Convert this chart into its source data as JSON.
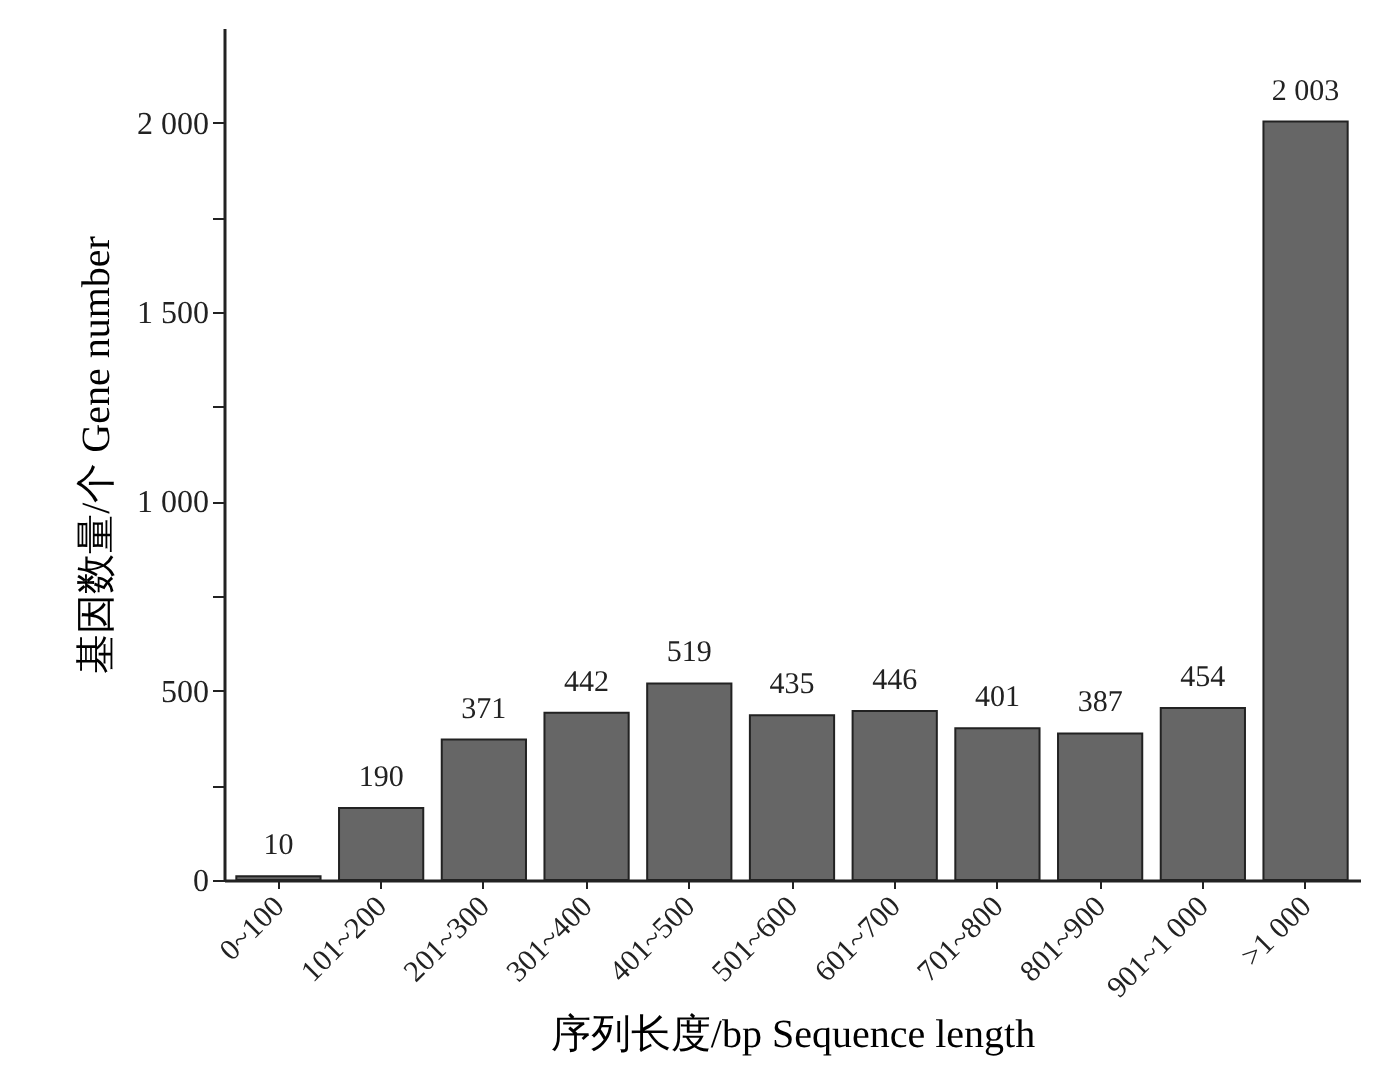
{
  "chart_data": {
    "type": "bar",
    "xlabel": "序列长度/bp Sequence length",
    "ylabel": "基因数量/个 Gene number",
    "categories": [
      "0~100",
      "101~200",
      "201~300",
      "301~400",
      "401~500",
      "501~600",
      "601~700",
      "701~800",
      "801~900",
      "901~1 000",
      ">1 000"
    ],
    "values": [
      10,
      190,
      371,
      442,
      519,
      435,
      446,
      401,
      387,
      454,
      2003
    ],
    "value_labels": [
      "10",
      "190",
      "371",
      "442",
      "519",
      "435",
      "446",
      "401",
      "387",
      "454",
      "2 003"
    ],
    "color": "#666666",
    "ylim": [
      0,
      2250
    ],
    "yticks": [
      0,
      {
        "value": 250,
        "label": null
      },
      500,
      {
        "value": 750,
        "label": null
      },
      {
        "value": 1000,
        "label": "1 000"
      },
      {
        "value": 1250,
        "label": null
      },
      {
        "value": 1500,
        "label": "1 500"
      },
      {
        "value": 1750,
        "label": null
      },
      {
        "value": 2000,
        "label": "2 000"
      }
    ],
    "grid": false
  }
}
